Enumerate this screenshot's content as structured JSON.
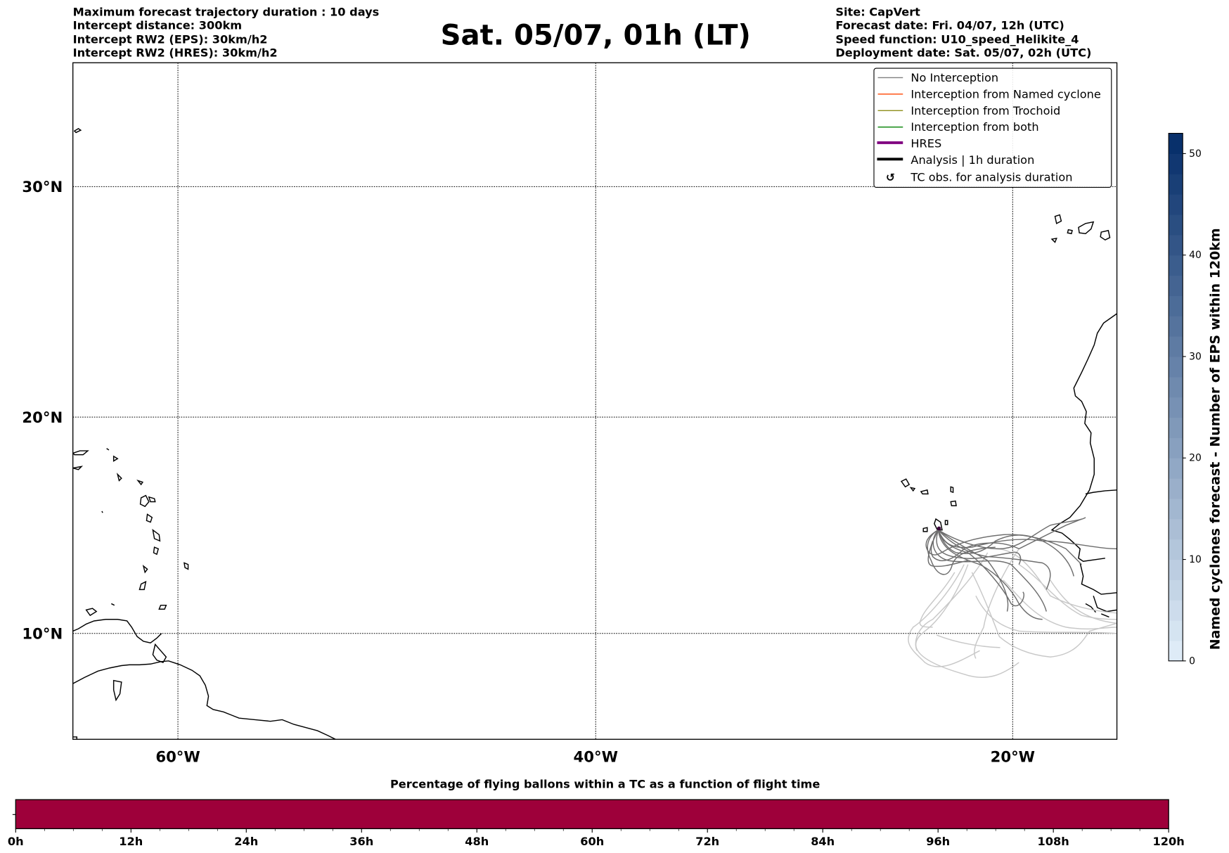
{
  "header": {
    "left": [
      "Maximum forecast trajectory duration : 10 days",
      "Intercept distance: 300km",
      "Intercept RW2 (EPS):  30km/h2",
      "Intercept RW2 (HRES): 30km/h2"
    ],
    "title": "Sat. 05/07, 01h (LT)",
    "right": [
      "Site: CapVert",
      "Forecast date: Fri. 04/07, 12h (UTC)",
      "Speed function: U10_speed_Helikite_4",
      "Deployment date: Sat. 05/07, 02h (UTC)"
    ]
  },
  "map": {
    "lat_labels": [
      "30°N",
      "20°N",
      "10°N"
    ],
    "lon_labels": [
      "60°W",
      "40°W",
      "20°W"
    ]
  },
  "legend": {
    "items": [
      {
        "label": "No Interception",
        "color": "#808080"
      },
      {
        "label": "Interception from Named cyclone",
        "color": "#ff4500"
      },
      {
        "label": "Interception from Trochoid",
        "color": "#808000"
      },
      {
        "label": "Interception from both",
        "color": "#008000"
      },
      {
        "label": "HRES",
        "color": "#800080"
      },
      {
        "label": "Analysis | 1h duration",
        "color": "#000000"
      },
      {
        "label": "TC obs. for analysis duration",
        "symbol": "↺"
      }
    ]
  },
  "chart_data": [
    {
      "type": "heatmap",
      "title": "Named cyclones forecast - Number of EPS within 120km",
      "colorbar": {
        "min": 0,
        "max": 52,
        "ticks": [
          "0",
          "10",
          "20",
          "30",
          "40",
          "50"
        ],
        "colors": [
          "#deebf7",
          "#08306b"
        ],
        "steps": 26
      }
    },
    {
      "type": "bar",
      "title": "Percentage of flying ballons within a TC as a function of flight time",
      "xlim": [
        0,
        120
      ],
      "ticks": [
        "0h",
        "12h",
        "24h",
        "36h",
        "48h",
        "60h",
        "72h",
        "84h",
        "96h",
        "108h",
        "120h"
      ],
      "fill_color": "#9e003a"
    }
  ]
}
